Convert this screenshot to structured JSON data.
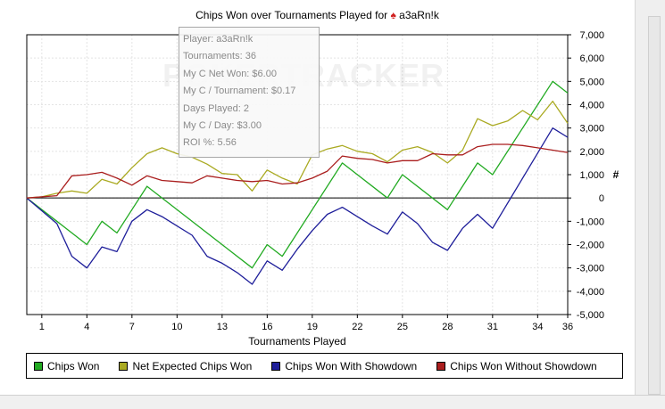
{
  "title_prefix": "Chips Won over Tournaments Played for",
  "player_symbol": "♠",
  "player_name": "a3aRn!k",
  "watermark": "POKERTRACKER",
  "tooltip": {
    "player": "Player: a3aRn!k",
    "tournaments": "Tournaments: 36",
    "net_won": "My C Net Won: $6.00",
    "per_tournament": "My C / Tournament: $0.17",
    "days_played": "Days Played: 2",
    "per_day": "My C / Day: $3.00",
    "roi": "ROI %: 5.56"
  },
  "chart_data": {
    "type": "line",
    "title": "Chips Won over Tournaments Played for a3aRn!k",
    "xlabel": "Tournaments Played",
    "ylabel": "#",
    "xlim": [
      0,
      36
    ],
    "ylim": [
      -5000,
      7000
    ],
    "x_ticks": [
      1,
      4,
      7,
      10,
      13,
      16,
      19,
      22,
      25,
      28,
      31,
      34,
      36
    ],
    "y_ticks": [
      -5000,
      -4000,
      -3000,
      -2000,
      -1000,
      0,
      1000,
      2000,
      3000,
      4000,
      5000,
      6000,
      7000
    ],
    "y_tick_labels": [
      "-5,000",
      "-4,000",
      "-3,000",
      "-2,000",
      "-1,000",
      "0",
      "1,000",
      "2,000",
      "3,000",
      "4,000",
      "5,000",
      "6,000",
      "7,000"
    ],
    "grid": true,
    "legend_position": "bottom",
    "x": [
      0,
      2,
      4,
      5,
      6,
      7,
      8,
      15,
      16,
      17,
      21,
      24,
      25,
      28,
      30,
      31,
      33,
      35,
      36
    ],
    "series": [
      {
        "name": "Chips Won",
        "color": "#22aa22",
        "x": [
          0,
          2,
          4,
          5,
          6,
          7,
          8,
          15,
          16,
          17,
          21,
          24,
          25,
          28,
          30,
          31,
          33,
          35,
          36
        ],
        "values": [
          0,
          -1000,
          -2000,
          -1000,
          -1500,
          -500,
          500,
          -3000,
          -2000,
          -2500,
          1500,
          0,
          1000,
          -500,
          1500,
          1000,
          3000,
          5000,
          4500
        ]
      },
      {
        "name": "Net Expected Chips Won",
        "color": "#aaaa22",
        "x": [
          0,
          1,
          2,
          3,
          4,
          5,
          6,
          7,
          8,
          9,
          10,
          11,
          12,
          13,
          14,
          15,
          16,
          17,
          18,
          19,
          20,
          21,
          22,
          23,
          24,
          25,
          26,
          27,
          28,
          29,
          30,
          31,
          32,
          33,
          34,
          35,
          36
        ],
        "values": [
          0,
          50,
          200,
          300,
          200,
          800,
          600,
          1300,
          1900,
          2150,
          1900,
          1750,
          1450,
          1050,
          1000,
          300,
          1200,
          850,
          600,
          1850,
          2100,
          2250,
          2000,
          1900,
          1550,
          2050,
          2200,
          1950,
          1500,
          2050,
          3400,
          3100,
          3300,
          3750,
          3350,
          4150,
          3200
        ]
      },
      {
        "name": "Chips Won With Showdown",
        "color": "#1e1e9a",
        "x": [
          0,
          2,
          3,
          4,
          5,
          6,
          7,
          8,
          9,
          10,
          11,
          12,
          13,
          14,
          15,
          16,
          17,
          18,
          19,
          20,
          21,
          22,
          23,
          24,
          25,
          26,
          27,
          28,
          29,
          30,
          31,
          35,
          36
        ],
        "values": [
          0,
          -1100,
          -2500,
          -3000,
          -2100,
          -2300,
          -1000,
          -500,
          -800,
          -1200,
          -1600,
          -2500,
          -2800,
          -3200,
          -3700,
          -2700,
          -3100,
          -2200,
          -1400,
          -700,
          -400,
          -800,
          -1200,
          -1550,
          -600,
          -1100,
          -1900,
          -2250,
          -1300,
          -700,
          -1300,
          3000,
          2600
        ]
      },
      {
        "name": "Chips Won Without Showdown",
        "color": "#aa1e1e",
        "x": [
          0,
          2,
          3,
          4,
          5,
          6,
          7,
          8,
          9,
          10,
          11,
          12,
          13,
          14,
          15,
          16,
          17,
          18,
          19,
          20,
          21,
          22,
          23,
          24,
          25,
          26,
          27,
          28,
          29,
          30,
          31,
          32,
          33,
          34,
          35,
          36
        ],
        "values": [
          0,
          100,
          950,
          1000,
          1100,
          850,
          550,
          950,
          750,
          700,
          650,
          950,
          850,
          750,
          700,
          750,
          600,
          650,
          850,
          1150,
          1800,
          1700,
          1650,
          1500,
          1600,
          1600,
          1900,
          1850,
          1850,
          2200,
          2300,
          2300,
          2250,
          2150,
          2050,
          1950
        ]
      }
    ]
  }
}
